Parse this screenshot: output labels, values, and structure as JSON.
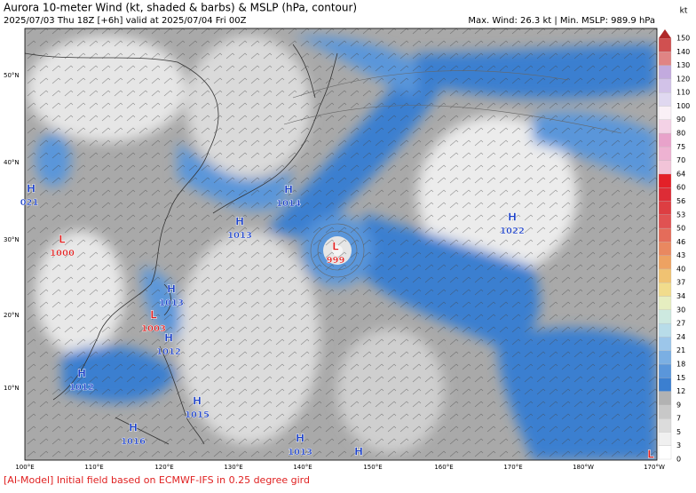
{
  "header": {
    "title": "Aurora 10-meter Wind (kt, shaded & barbs) & MSLP (hPa, contour)",
    "subtitle": "2025/07/03 Thu 18Z [+6h] valid at 2025/07/04 Fri 00Z",
    "stats": "Max. Wind: 26.3 kt | Min. MSLP: 989.9 hPa"
  },
  "colorbar": {
    "unit": "kt",
    "levels": [
      "0",
      "3",
      "5",
      "7",
      "9",
      "12",
      "15",
      "18",
      "21",
      "24",
      "27",
      "30",
      "34",
      "37",
      "40",
      "43",
      "46",
      "50",
      "53",
      "56",
      "60",
      "64",
      "70",
      "75",
      "80",
      "90",
      "100",
      "110",
      "120",
      "130",
      "140",
      "150"
    ],
    "colors": [
      "#ffffff",
      "#f0f0f0",
      "#dcdcdc",
      "#c8c8c8",
      "#b2b2b2",
      "#3b7fd0",
      "#5a96da",
      "#7bafe3",
      "#9cc6ea",
      "#b8dce9",
      "#cde9e0",
      "#e6eec0",
      "#f1dc8c",
      "#f0c272",
      "#eda262",
      "#e98860",
      "#e46c5a",
      "#e05252",
      "#dd3e42",
      "#dd2c36",
      "#e32028",
      "#f2c4d8",
      "#eeb2d2",
      "#e8a2ca",
      "#f4d2e6",
      "#faf0f6",
      "#e0d8f0",
      "#d2c2e8",
      "#c2aade",
      "#e08484",
      "#d05050"
    ]
  },
  "axes": {
    "lon": [
      "100°E",
      "110°E",
      "120°E",
      "130°E",
      "140°E",
      "150°E",
      "160°E",
      "170°E",
      "180°W",
      "170°W"
    ],
    "lat": [
      "50°N",
      "40°N",
      "30°N",
      "20°N",
      "10°N"
    ]
  },
  "markers": [
    {
      "type": "H",
      "value": "021"
    },
    {
      "type": "L",
      "value": "1000"
    },
    {
      "type": "H",
      "value": "1014"
    },
    {
      "type": "H",
      "value": "1013"
    },
    {
      "type": "L",
      "value": "999"
    },
    {
      "type": "H",
      "value": "1022"
    },
    {
      "type": "H",
      "value": "1013"
    },
    {
      "type": "L",
      "value": "1003"
    },
    {
      "type": "H",
      "value": "1012"
    },
    {
      "type": "H",
      "value": "1012"
    },
    {
      "type": "H",
      "value": "1015"
    },
    {
      "type": "H",
      "value": "1016"
    },
    {
      "type": "H",
      "value": "1013"
    },
    {
      "type": "H"
    },
    {
      "type": "L"
    }
  ],
  "footer": "[AI-Model] Initial field based on ECMWF-IFS in 0.25 degree gird"
}
